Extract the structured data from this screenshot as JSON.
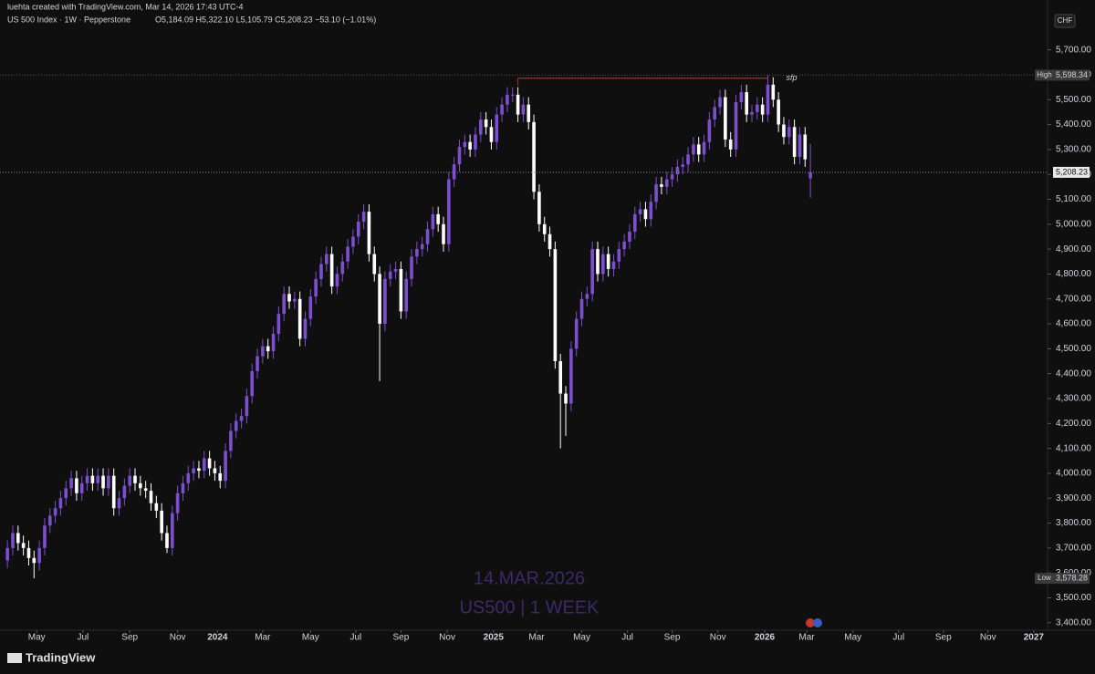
{
  "header": {
    "credit": "luehta created with TradingView.com, Mar 14, 2026 17:43 UTC-4",
    "symbol": "US 500 Index · 1W · Pepperstone",
    "legend": "O5,184.09  H5,322.10  L5,105.79  C5,208.23  −53.10 (−1.01%)",
    "currency": "CHF"
  },
  "watermark": [
    "14.MAR.2026",
    "US500 | 1 WEEK"
  ],
  "brand": "TradingView",
  "chart_data": {
    "type": "candlestick",
    "up_color": "#7b4fd0",
    "down_color": "#ffffff",
    "grid": false,
    "xlim": [
      -1.4,
      195.6
    ],
    "ylim": [
      3370,
      5900
    ],
    "xticks": [
      {
        "value": 5.5,
        "label": "May"
      },
      {
        "value": 14.2,
        "label": "Jul"
      },
      {
        "value": 23,
        "label": "Sep"
      },
      {
        "value": 32,
        "label": "Nov"
      },
      {
        "value": 39.5,
        "label": "2024"
      },
      {
        "value": 48,
        "label": "Mar"
      },
      {
        "value": 57,
        "label": "May"
      },
      {
        "value": 65.5,
        "label": "Jul"
      },
      {
        "value": 74,
        "label": "Sep"
      },
      {
        "value": 82.7,
        "label": "Nov"
      },
      {
        "value": 91.4,
        "label": "2025"
      },
      {
        "value": 99.5,
        "label": "Mar"
      },
      {
        "value": 108,
        "label": "May"
      },
      {
        "value": 116.6,
        "label": "Jul"
      },
      {
        "value": 125,
        "label": "Sep"
      },
      {
        "value": 133.6,
        "label": "Nov"
      },
      {
        "value": 142.4,
        "label": "2026"
      },
      {
        "value": 150.3,
        "label": "Mar"
      },
      {
        "value": 159,
        "label": "May"
      },
      {
        "value": 167.6,
        "label": "Jul"
      },
      {
        "value": 176,
        "label": "Sep"
      },
      {
        "value": 184.4,
        "label": "Nov"
      },
      {
        "value": 193,
        "label": "2027"
      }
    ],
    "yticks": [
      {
        "value": 3400,
        "label": "3,400.00"
      },
      {
        "value": 3500,
        "label": "3,500.00"
      },
      {
        "value": 3600,
        "label": "3,600.00"
      },
      {
        "value": 3700,
        "label": "3,700.00"
      },
      {
        "value": 3800,
        "label": "3,800.00"
      },
      {
        "value": 3900,
        "label": "3,900.00"
      },
      {
        "value": 4000,
        "label": "4,000.00"
      },
      {
        "value": 4100,
        "label": "4,100.00"
      },
      {
        "value": 4200,
        "label": "4,200.00"
      },
      {
        "value": 4300,
        "label": "4,300.00"
      },
      {
        "value": 4400,
        "label": "4,400.00"
      },
      {
        "value": 4500,
        "label": "4,500.00"
      },
      {
        "value": 4600,
        "label": "4,600.00"
      },
      {
        "value": 4700,
        "label": "4,700.00"
      },
      {
        "value": 4800,
        "label": "4,800.00"
      },
      {
        "value": 4900,
        "label": "4,900.00"
      },
      {
        "value": 5000,
        "label": "5,000.00"
      },
      {
        "value": 5100,
        "label": "5,100.00"
      },
      {
        "value": 5200,
        "label": "5,200.00"
      },
      {
        "value": 5300,
        "label": "5,300.00"
      },
      {
        "value": 5400,
        "label": "5,400.00"
      },
      {
        "value": 5500,
        "label": "5,500.00"
      },
      {
        "value": 5600,
        "label": "5,600.00"
      },
      {
        "value": 5700,
        "label": "5,700.00"
      }
    ],
    "open": [
      3650,
      3700,
      3760,
      3720,
      3700,
      3660,
      3640,
      3700,
      3790,
      3830,
      3860,
      3900,
      3940,
      3980,
      3920,
      3960,
      3990,
      3960,
      3990,
      3940,
      3990,
      3860,
      3900,
      3950,
      3990,
      3960,
      3940,
      3930,
      3880,
      3850,
      3760,
      3700,
      3840,
      3920,
      3960,
      4000,
      4020,
      4010,
      4060,
      4020,
      4000,
      3970,
      4090,
      4170,
      4210,
      4230,
      4310,
      4410,
      4470,
      4510,
      4490,
      4560,
      4640,
      4720,
      4690,
      4700,
      4540,
      4620,
      4710,
      4780,
      4840,
      4880,
      4750,
      4800,
      4850,
      4910,
      4950,
      5010,
      5050,
      4880,
      4800,
      4600,
      4780,
      4810,
      4820,
      4650,
      4780,
      4870,
      4900,
      4920,
      4980,
      5040,
      5000,
      4920,
      5180,
      5240,
      5310,
      5330,
      5300,
      5360,
      5420,
      5390,
      5330,
      5440,
      5480,
      5520,
      5520,
      5440,
      5480,
      5410,
      5130,
      5000,
      4960,
      4900,
      4450,
      4320,
      4280,
      4500,
      4620,
      4700,
      4720,
      4900,
      4800,
      4880,
      4820,
      4850,
      4900,
      4930,
      4970,
      5040,
      5060,
      5020,
      5090,
      5160,
      5150,
      5180,
      5200,
      5230,
      5240,
      5280,
      5320,
      5280,
      5330,
      5420,
      5470,
      5510,
      5340,
      5300,
      5490,
      5530,
      5440,
      5450,
      5480,
      5440,
      5560,
      5500,
      5400,
      5350,
      5390,
      5270,
      5360,
      5184.09
    ],
    "high": [
      3730,
      3790,
      3790,
      3750,
      3730,
      3690,
      3730,
      3820,
      3860,
      3890,
      3930,
      3970,
      4010,
      4010,
      3990,
      4020,
      4020,
      4020,
      4020,
      4020,
      4020,
      3930,
      3980,
      4020,
      4020,
      3990,
      3970,
      3960,
      3910,
      3880,
      3790,
      3870,
      3950,
      3990,
      4030,
      4050,
      4050,
      4090,
      4090,
      4050,
      4030,
      4120,
      4200,
      4240,
      4260,
      4340,
      4440,
      4500,
      4540,
      4540,
      4590,
      4670,
      4750,
      4750,
      4730,
      4730,
      4650,
      4740,
      4810,
      4870,
      4910,
      4910,
      4830,
      4880,
      4940,
      4980,
      5040,
      5080,
      5080,
      4910,
      4830,
      4810,
      4840,
      4850,
      4850,
      4810,
      4900,
      4930,
      4950,
      5010,
      5070,
      5070,
      5030,
      5210,
      5270,
      5340,
      5360,
      5360,
      5390,
      5450,
      5450,
      5420,
      5470,
      5510,
      5550,
      5550,
      5550,
      5510,
      5510,
      5440,
      5160,
      5030,
      4990,
      4930,
      4480,
      4350,
      4530,
      4650,
      4730,
      4750,
      4930,
      4930,
      4910,
      4910,
      4880,
      4930,
      4960,
      5000,
      5070,
      5090,
      5090,
      5120,
      5190,
      5190,
      5210,
      5230,
      5260,
      5270,
      5310,
      5350,
      5350,
      5360,
      5450,
      5500,
      5540,
      5540,
      5370,
      5520,
      5560,
      5560,
      5480,
      5510,
      5510,
      5598.34,
      5590,
      5530,
      5430,
      5420,
      5420,
      5390,
      5390,
      5322.1
    ],
    "low": [
      3620,
      3670,
      3690,
      3670,
      3630,
      3578.28,
      3610,
      3670,
      3760,
      3800,
      3830,
      3870,
      3910,
      3890,
      3890,
      3930,
      3930,
      3930,
      3910,
      3910,
      3830,
      3830,
      3870,
      3920,
      3930,
      3910,
      3900,
      3850,
      3820,
      3730,
      3680,
      3670,
      3810,
      3890,
      3930,
      3970,
      3980,
      3980,
      3990,
      3970,
      3940,
      3940,
      4060,
      4140,
      4180,
      4200,
      4280,
      4380,
      4440,
      4460,
      4460,
      4530,
      4610,
      4660,
      4660,
      4510,
      4510,
      4590,
      4680,
      4750,
      4810,
      4720,
      4720,
      4770,
      4820,
      4880,
      4920,
      4980,
      4850,
      4770,
      4370,
      4570,
      4750,
      4780,
      4620,
      4620,
      4750,
      4840,
      4870,
      4890,
      4950,
      4970,
      4890,
      4890,
      5150,
      5210,
      5280,
      5270,
      5270,
      5330,
      5360,
      5300,
      5300,
      5410,
      5450,
      5490,
      5410,
      5410,
      5380,
      5100,
      4970,
      4930,
      4870,
      4420,
      4100,
      4150,
      4250,
      4470,
      4590,
      4670,
      4690,
      4770,
      4770,
      4790,
      4790,
      4820,
      4870,
      4900,
      4940,
      5010,
      4990,
      4990,
      5060,
      5120,
      5120,
      5150,
      5170,
      5200,
      5210,
      5250,
      5250,
      5250,
      5300,
      5390,
      5440,
      5310,
      5270,
      5270,
      5460,
      5410,
      5410,
      5420,
      5410,
      5410,
      5470,
      5370,
      5320,
      5320,
      5240,
      5240,
      5230,
      5105.79
    ],
    "close": [
      3700,
      3760,
      3720,
      3700,
      3660,
      3640,
      3700,
      3790,
      3830,
      3860,
      3900,
      3940,
      3980,
      3920,
      3960,
      3990,
      3960,
      3990,
      3940,
      3990,
      3860,
      3900,
      3950,
      3990,
      3960,
      3940,
      3930,
      3880,
      3850,
      3760,
      3700,
      3840,
      3920,
      3960,
      4000,
      4020,
      4010,
      4060,
      4020,
      4000,
      3970,
      4090,
      4170,
      4210,
      4230,
      4310,
      4410,
      4470,
      4510,
      4490,
      4560,
      4640,
      4720,
      4690,
      4700,
      4540,
      4620,
      4710,
      4780,
      4840,
      4880,
      4750,
      4800,
      4850,
      4910,
      4950,
      5010,
      5050,
      4880,
      4800,
      4600,
      4780,
      4810,
      4820,
      4650,
      4780,
      4870,
      4900,
      4920,
      4980,
      5040,
      5000,
      4920,
      5180,
      5240,
      5310,
      5330,
      5300,
      5360,
      5420,
      5390,
      5330,
      5440,
      5480,
      5520,
      5520,
      5440,
      5480,
      5410,
      5130,
      5000,
      4960,
      4900,
      4450,
      4320,
      4280,
      4500,
      4620,
      4700,
      4720,
      4900,
      4800,
      4880,
      4820,
      4850,
      4900,
      4930,
      4970,
      5040,
      5060,
      5020,
      5090,
      5160,
      5150,
      5180,
      5200,
      5230,
      5240,
      5280,
      5320,
      5280,
      5330,
      5420,
      5470,
      5510,
      5340,
      5300,
      5490,
      5530,
      5440,
      5450,
      5480,
      5440,
      5560,
      5500,
      5400,
      5350,
      5390,
      5270,
      5360,
      5260,
      5208.23
    ],
    "high_badge": {
      "label": "High",
      "value": 5598.34,
      "text": "5,598.34"
    },
    "low_badge": {
      "label": "Low",
      "value": 3578.28,
      "text": "3,578.28"
    },
    "last_price": {
      "value": 5208.23,
      "text": "5,208.23"
    },
    "annotations": [
      {
        "text": "sfp",
        "value": 5586,
        "x": [
          96,
          143
        ],
        "color": "#b22833"
      }
    ]
  }
}
